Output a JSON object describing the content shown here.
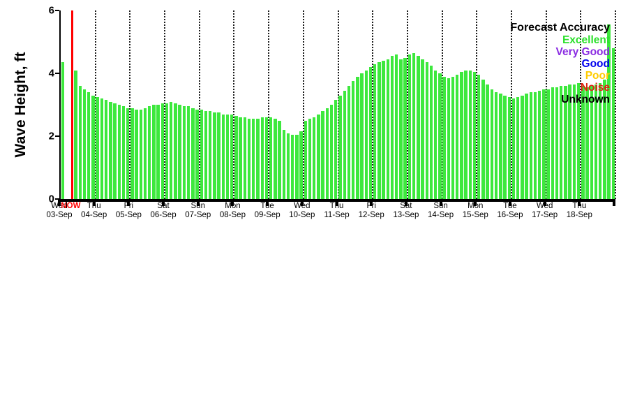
{
  "chart_data": {
    "type": "bar",
    "title": "",
    "xlabel": "",
    "ylabel": "Wave Height, ft",
    "ylim": [
      0,
      6
    ],
    "yticks": [
      0,
      2,
      4,
      6
    ],
    "grid": "vertical-dotted-per-day",
    "bar_color": "#3de83d",
    "now_line_color": "#ff0000",
    "now_label": "NOW",
    "now_position_day_fraction": 0.33,
    "bars_per_day": 8,
    "days": [
      {
        "day": "Wed",
        "date": "03-Sep"
      },
      {
        "day": "Thu",
        "date": "04-Sep"
      },
      {
        "day": "Fri",
        "date": "05-Sep"
      },
      {
        "day": "Sat",
        "date": "06-Sep"
      },
      {
        "day": "Sun",
        "date": "07-Sep"
      },
      {
        "day": "Mon",
        "date": "08-Sep"
      },
      {
        "day": "Tue",
        "date": "09-Sep"
      },
      {
        "day": "Wed",
        "date": "10-Sep"
      },
      {
        "day": "Thu",
        "date": "11-Sep"
      },
      {
        "day": "Fri",
        "date": "12-Sep"
      },
      {
        "day": "Sat",
        "date": "13-Sep"
      },
      {
        "day": "Sun",
        "date": "14-Sep"
      },
      {
        "day": "Mon",
        "date": "15-Sep"
      },
      {
        "day": "Tue",
        "date": "16-Sep"
      },
      {
        "day": "Wed",
        "date": "17-Sep"
      },
      {
        "day": "Thu",
        "date": "18-Sep"
      }
    ],
    "values": [
      4.35,
      null,
      null,
      4.1,
      3.6,
      3.5,
      3.4,
      3.3,
      3.25,
      3.2,
      3.15,
      3.1,
      3.05,
      3.0,
      2.95,
      2.9,
      2.9,
      2.85,
      2.85,
      2.9,
      2.95,
      3.0,
      3.0,
      3.05,
      3.05,
      3.1,
      3.05,
      3.0,
      2.95,
      2.95,
      2.9,
      2.85,
      2.85,
      2.8,
      2.8,
      2.75,
      2.75,
      2.7,
      2.7,
      2.7,
      2.65,
      2.6,
      2.6,
      2.55,
      2.55,
      2.55,
      2.6,
      2.6,
      2.6,
      2.55,
      2.5,
      2.2,
      2.1,
      2.05,
      2.05,
      2.15,
      2.5,
      2.55,
      2.6,
      2.7,
      2.8,
      2.9,
      3.0,
      3.15,
      3.3,
      3.45,
      3.6,
      3.75,
      3.9,
      4.0,
      4.1,
      4.2,
      4.3,
      4.35,
      4.4,
      4.45,
      4.55,
      4.6,
      4.45,
      4.5,
      4.6,
      4.65,
      4.55,
      4.45,
      4.35,
      4.25,
      4.1,
      4.0,
      3.9,
      3.85,
      3.9,
      3.95,
      4.05,
      4.1,
      4.1,
      4.05,
      3.95,
      3.8,
      3.65,
      3.5,
      3.4,
      3.35,
      3.3,
      3.25,
      3.2,
      3.25,
      3.3,
      3.35,
      3.4,
      3.4,
      3.45,
      3.5,
      3.5,
      3.55,
      3.55,
      3.6,
      3.6,
      3.65,
      3.65,
      3.7,
      3.6,
      3.55,
      3.6,
      3.65,
      3.7,
      3.8,
      5.55,
      4.8
    ],
    "legend": {
      "title": "Forecast Accuracy",
      "position": "top-right",
      "entries": [
        {
          "label": "Excellent",
          "color": "#2ce02c"
        },
        {
          "label": "Very Good",
          "color": "#8a2be2"
        },
        {
          "label": "Good",
          "color": "#0000ee"
        },
        {
          "label": "Poor",
          "color": "#ffcc00"
        },
        {
          "label": "Noise",
          "color": "#dd2211"
        },
        {
          "label": "Unknown",
          "color": "#000000"
        }
      ]
    }
  }
}
